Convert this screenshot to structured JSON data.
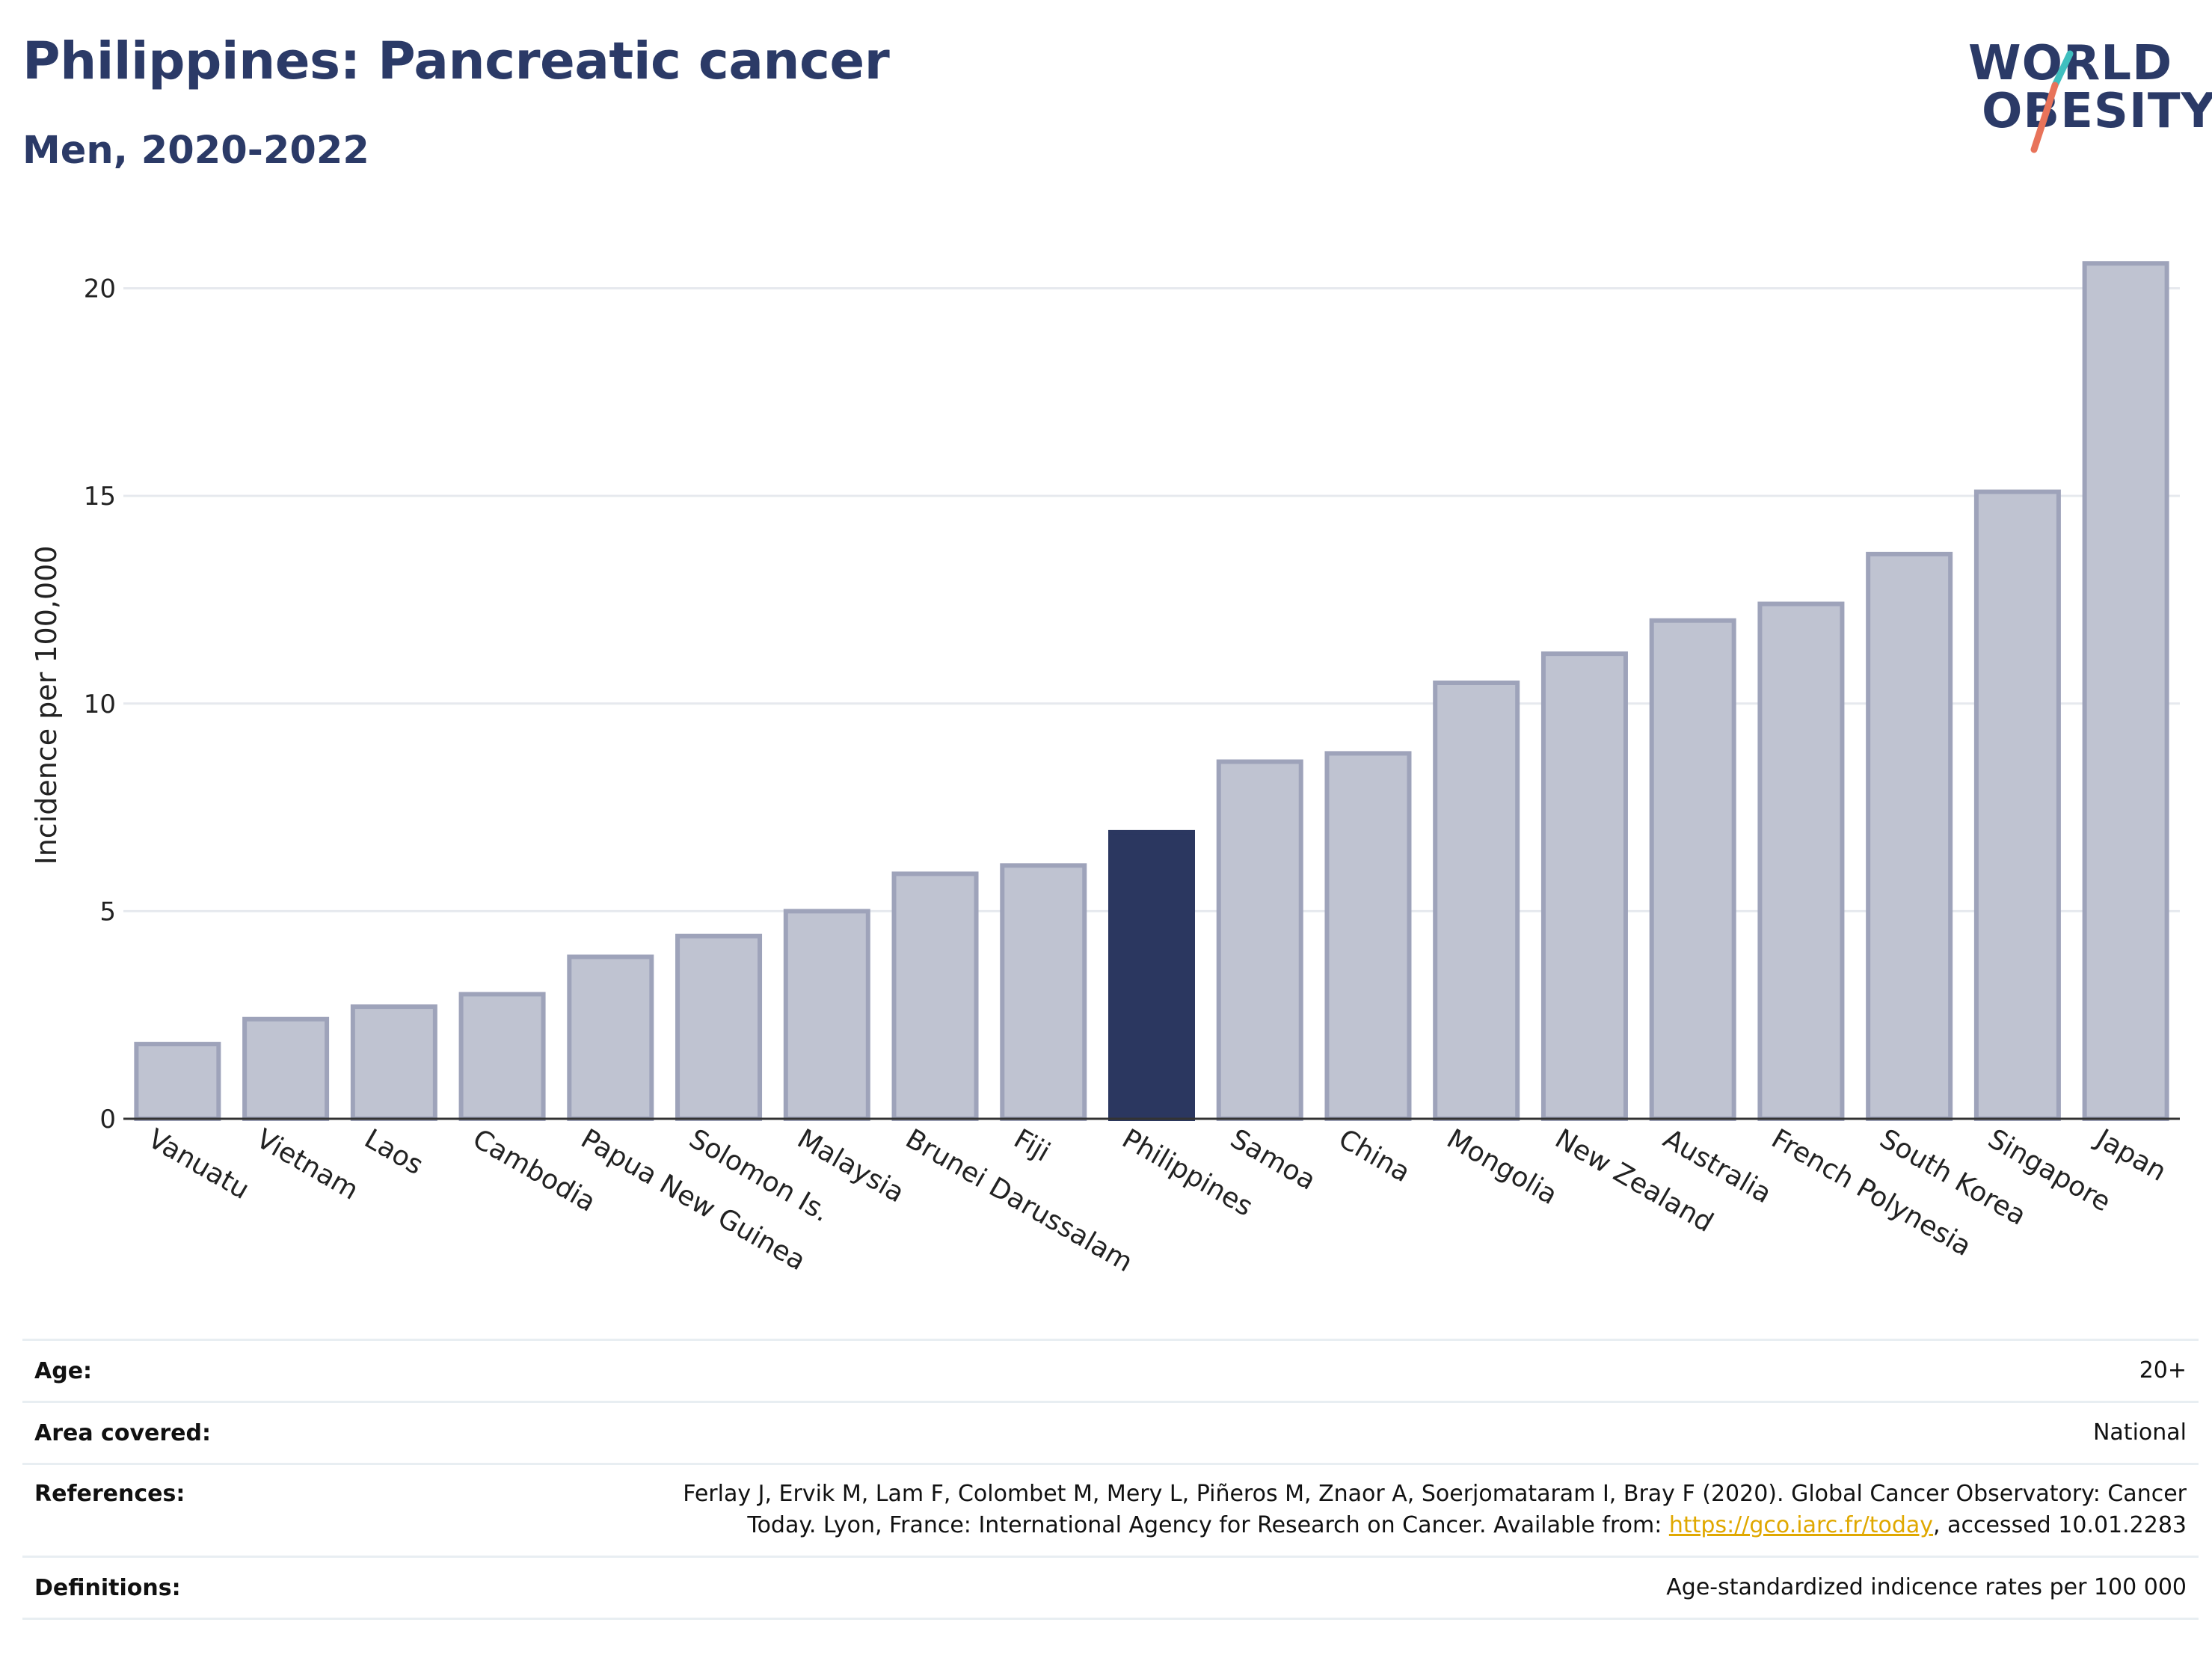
{
  "header": {
    "title": "Philippines: Pancreatic cancer",
    "subtitle": "Men, 2020-2022"
  },
  "logo": {
    "line1": "WORLD",
    "line2": "OBESITY",
    "accent_teal": "#3fbfbf",
    "accent_coral": "#e8735a"
  },
  "colors": {
    "bar": "#bfc3d1",
    "bar_border": "#9ea3ba",
    "highlight": "#2b3760",
    "grid": "#e6e9ee",
    "axis": "#333333"
  },
  "chart_data": {
    "type": "bar",
    "ylabel": "Incidence per 100,000",
    "xlabel": "",
    "ylim": [
      0,
      21
    ],
    "yticks": [
      0,
      5,
      10,
      15,
      20
    ],
    "grid": true,
    "highlight": "Philippines",
    "categories": [
      "Vanuatu",
      "Vietnam",
      "Laos",
      "Cambodia",
      "Papua New Guinea",
      "Solomon Is.",
      "Malaysia",
      "Brunei Darussalam",
      "Fiji",
      "Philippines",
      "Samoa",
      "China",
      "Mongolia",
      "New Zealand",
      "Australia",
      "French Polynesia",
      "South Korea",
      "Singapore",
      "Japan"
    ],
    "values": [
      1.8,
      2.4,
      2.7,
      3.0,
      3.9,
      4.4,
      5.0,
      5.9,
      6.1,
      6.9,
      8.6,
      8.8,
      10.5,
      11.2,
      12.0,
      12.4,
      13.6,
      15.1,
      20.6
    ]
  },
  "meta": {
    "age_label": "Age:",
    "age_value": "20+",
    "area_label": "Area covered:",
    "area_value": "National",
    "references_label": "References:",
    "references_text_1": "Ferlay J, Ervik M, Lam F, Colombet M, Mery L, Piñeros M, Znaor A, Soerjomataram I, Bray F (2020). Global Cancer Observatory: Cancer Today. Lyon, France: International Agency for Research on Cancer. Available from: ",
    "references_link": "https://gco.iarc.fr/today",
    "references_text_2": ", accessed 10.01.2283",
    "definitions_label": "Definitions:",
    "definitions_value": "Age-standardized indicence rates per 100 000"
  }
}
